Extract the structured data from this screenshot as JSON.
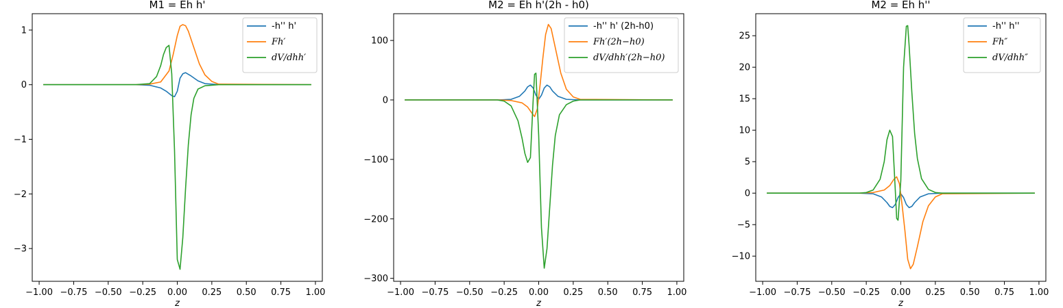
{
  "colors": {
    "blue": "#1f77b4",
    "orange": "#ff7f0e",
    "green": "#2ca02c"
  },
  "chart_data": [
    {
      "type": "line",
      "title": "M1 = Eh h'",
      "xlabel": "z",
      "ylabel": "",
      "xlim": [
        -1.05,
        1.05
      ],
      "ylim": [
        -3.6,
        1.3
      ],
      "xticks": [
        -1.0,
        -0.75,
        -0.5,
        -0.25,
        0.0,
        0.25,
        0.5,
        0.75,
        1.0
      ],
      "xtick_labels": [
        "−1.00",
        "−0.75",
        "−0.50",
        "−0.25",
        "0.00",
        "0.25",
        "0.50",
        "0.75",
        "1.00"
      ],
      "yticks": [
        1,
        0,
        -1,
        -2,
        -3
      ],
      "ytick_labels": [
        "1",
        "0",
        "−1",
        "−2",
        "−3"
      ],
      "legend": "top-right",
      "grid": false,
      "series": [
        {
          "name": "-h'' h'",
          "color": "#1f77b4",
          "x": [
            -0.97,
            -0.3,
            -0.2,
            -0.12,
            -0.08,
            -0.04,
            -0.02,
            0.0,
            0.02,
            0.04,
            0.06,
            0.1,
            0.15,
            0.2,
            0.3,
            0.97
          ],
          "y": [
            0,
            0,
            -0.01,
            -0.06,
            -0.12,
            -0.2,
            -0.22,
            -0.12,
            0.12,
            0.2,
            0.22,
            0.16,
            0.07,
            0.02,
            0.0,
            0
          ]
        },
        {
          "name": "Fh′",
          "color": "#ff7f0e",
          "x": [
            -0.97,
            -0.3,
            -0.2,
            -0.12,
            -0.06,
            -0.03,
            0.0,
            0.02,
            0.04,
            0.06,
            0.08,
            0.12,
            0.16,
            0.2,
            0.25,
            0.3,
            0.97
          ],
          "y": [
            0,
            0,
            0.01,
            0.05,
            0.25,
            0.55,
            0.9,
            1.07,
            1.1,
            1.08,
            0.98,
            0.68,
            0.38,
            0.18,
            0.06,
            0.01,
            0
          ]
        },
        {
          "name": "dV/dhh′",
          "color": "#2ca02c",
          "x": [
            -0.97,
            -0.3,
            -0.2,
            -0.15,
            -0.12,
            -0.1,
            -0.08,
            -0.06,
            -0.04,
            -0.02,
            0.0,
            0.02,
            0.04,
            0.06,
            0.08,
            0.1,
            0.12,
            0.15,
            0.2,
            0.3,
            0.97
          ],
          "y": [
            0,
            0,
            0.02,
            0.15,
            0.35,
            0.55,
            0.68,
            0.72,
            0.2,
            -1.2,
            -3.2,
            -3.38,
            -2.8,
            -1.9,
            -1.1,
            -0.55,
            -0.25,
            -0.08,
            -0.02,
            0.0,
            0
          ]
        }
      ]
    },
    {
      "type": "line",
      "title": "M2 = Eh h'(2h - h0)",
      "xlabel": "z",
      "ylabel": "",
      "xlim": [
        -1.05,
        1.05
      ],
      "ylim": [
        -305,
        145
      ],
      "xticks": [
        -1.0,
        -0.75,
        -0.5,
        -0.25,
        0.0,
        0.25,
        0.5,
        0.75,
        1.0
      ],
      "xtick_labels": [
        "−1.00",
        "−0.75",
        "−0.50",
        "−0.25",
        "0.00",
        "0.25",
        "0.50",
        "0.75",
        "1.00"
      ],
      "yticks": [
        100,
        0,
        -100,
        -200,
        -300
      ],
      "ytick_labels": [
        "100",
        "0",
        "−100",
        "−200",
        "−300"
      ],
      "legend": "top-right",
      "grid": false,
      "series": [
        {
          "name": "-h'' h' (2h-h0)",
          "color": "#1f77b4",
          "x": [
            -0.97,
            -0.3,
            -0.2,
            -0.14,
            -0.1,
            -0.08,
            -0.06,
            -0.04,
            -0.02,
            0.0,
            0.02,
            0.04,
            0.06,
            0.08,
            0.1,
            0.14,
            0.2,
            0.3,
            0.97
          ],
          "y": [
            0,
            0,
            1,
            6,
            15,
            22,
            25,
            20,
            8,
            1,
            8,
            20,
            25,
            22,
            15,
            6,
            1,
            0,
            0
          ]
        },
        {
          "name": "Fh′(2h−h0)",
          "color": "#ff7f0e",
          "x": [
            -0.97,
            -0.3,
            -0.2,
            -0.12,
            -0.08,
            -0.05,
            -0.03,
            -0.01,
            0.01,
            0.03,
            0.05,
            0.07,
            0.09,
            0.12,
            0.16,
            0.2,
            0.25,
            0.3,
            0.97
          ],
          "y": [
            0,
            0,
            -1,
            -5,
            -12,
            -22,
            -28,
            -15,
            25,
            70,
            110,
            127,
            120,
            88,
            45,
            18,
            5,
            1,
            0
          ]
        },
        {
          "name": "dV/dhh′(2h−h0)",
          "color": "#2ca02c",
          "x": [
            -0.97,
            -0.3,
            -0.25,
            -0.2,
            -0.15,
            -0.12,
            -0.1,
            -0.08,
            -0.06,
            -0.04,
            -0.03,
            -0.02,
            0.0,
            0.02,
            0.04,
            0.06,
            0.08,
            0.1,
            0.12,
            0.15,
            0.2,
            0.25,
            0.3,
            0.97
          ],
          "y": [
            0,
            0,
            -2,
            -10,
            -35,
            -65,
            -90,
            -105,
            -97,
            0,
            43,
            45,
            -60,
            -215,
            -283,
            -250,
            -180,
            -110,
            -60,
            -25,
            -8,
            -2,
            0,
            0
          ]
        }
      ]
    },
    {
      "type": "line",
      "title": "M2 = Eh h''",
      "xlabel": "z",
      "ylabel": "",
      "xlim": [
        -1.05,
        1.05
      ],
      "ylim": [
        -14,
        28.5
      ],
      "xticks": [
        -1.0,
        -0.75,
        -0.5,
        -0.25,
        0.0,
        0.25,
        0.5,
        0.75,
        1.0
      ],
      "xtick_labels": [
        "−1.00",
        "−0.75",
        "−0.50",
        "−0.25",
        "0.00",
        "0.25",
        "0.50",
        "0.75",
        "1.00"
      ],
      "yticks": [
        25,
        20,
        15,
        10,
        5,
        0,
        -5,
        -10
      ],
      "ytick_labels": [
        "25",
        "20",
        "15",
        "10",
        "5",
        "0",
        "−5",
        "−10"
      ],
      "legend": "top-right",
      "grid": false,
      "series": [
        {
          "name": "-h'' h''",
          "color": "#1f77b4",
          "x": [
            -0.97,
            -0.3,
            -0.2,
            -0.14,
            -0.1,
            -0.08,
            -0.06,
            -0.04,
            -0.02,
            0.0,
            0.02,
            0.04,
            0.06,
            0.08,
            0.1,
            0.14,
            0.2,
            0.3,
            0.97
          ],
          "y": [
            0,
            0,
            -0.1,
            -0.6,
            -1.5,
            -2.1,
            -2.3,
            -1.8,
            -0.7,
            -0.1,
            -0.7,
            -1.8,
            -2.3,
            -2.1,
            -1.5,
            -0.6,
            -0.1,
            0,
            0
          ]
        },
        {
          "name": "Fh″",
          "color": "#ff7f0e",
          "x": [
            -0.97,
            -0.3,
            -0.2,
            -0.12,
            -0.08,
            -0.05,
            -0.03,
            -0.01,
            0.01,
            0.03,
            0.05,
            0.07,
            0.09,
            0.12,
            0.16,
            0.2,
            0.25,
            0.3,
            0.97
          ],
          "y": [
            0,
            0,
            0.1,
            0.5,
            1.2,
            2.2,
            2.6,
            1.5,
            -2.0,
            -6.0,
            -10.5,
            -12.0,
            -11.3,
            -8.5,
            -4.5,
            -2.0,
            -0.6,
            -0.1,
            0
          ]
        },
        {
          "name": "dV/dhh″",
          "color": "#2ca02c",
          "x": [
            -0.97,
            -0.3,
            -0.25,
            -0.2,
            -0.15,
            -0.12,
            -0.1,
            -0.08,
            -0.06,
            -0.04,
            -0.03,
            -0.02,
            0.0,
            0.02,
            0.04,
            0.05,
            0.06,
            0.08,
            0.1,
            0.12,
            0.15,
            0.2,
            0.25,
            0.3,
            0.97
          ],
          "y": [
            0,
            0,
            0.1,
            0.5,
            2.2,
            5.0,
            8.5,
            10.0,
            9.0,
            0.5,
            -4.0,
            -4.3,
            2.0,
            20.0,
            26.5,
            26.6,
            23.5,
            16.0,
            9.5,
            5.5,
            2.3,
            0.6,
            0.1,
            0,
            0
          ]
        }
      ]
    }
  ]
}
